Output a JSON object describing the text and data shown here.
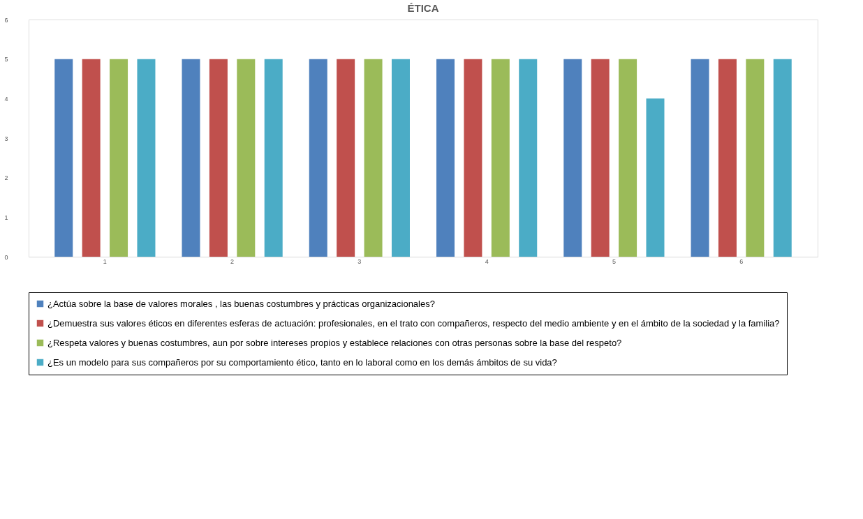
{
  "chart_data": {
    "type": "bar",
    "title": "ÉTICA",
    "categories": [
      "1",
      "2",
      "3",
      "4",
      "5",
      "6"
    ],
    "series": [
      {
        "name": "¿Actúa sobre la base de valores morales , las buenas costumbres y prácticas organizacionales?",
        "color": "#4f81bd",
        "values": [
          5,
          5,
          5,
          5,
          5,
          5
        ]
      },
      {
        "name": "¿Demuestra sus valores éticos en diferentes esferas de actuación: profesionales, en el trato con compañeros, respecto del medio ambiente y en el ámbito de la sociedad y la familia?",
        "color": "#c0504d",
        "values": [
          5,
          5,
          5,
          5,
          5,
          5
        ]
      },
      {
        "name": "¿Respeta valores y buenas costumbres, aun por sobre intereses propios y establece relaciones con otras personas sobre la base del respeto?",
        "color": "#9bbb59",
        "values": [
          5,
          5,
          5,
          5,
          5,
          5
        ]
      },
      {
        "name": "¿Es un modelo para sus compañeros por su comportamiento ético, tanto en lo laboral como en los demás ámbitos de su vida?",
        "color": "#4bacc6",
        "values": [
          5,
          5,
          5,
          5,
          4,
          5
        ]
      }
    ],
    "ylim": [
      0,
      6
    ],
    "yticks": [
      0,
      1,
      2,
      3,
      4,
      5,
      6
    ],
    "grid": false,
    "legend": "bottom"
  }
}
